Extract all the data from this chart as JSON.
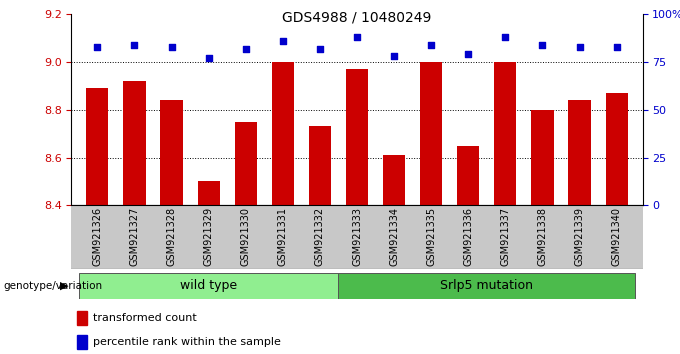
{
  "title": "GDS4988 / 10480249",
  "samples": [
    "GSM921326",
    "GSM921327",
    "GSM921328",
    "GSM921329",
    "GSM921330",
    "GSM921331",
    "GSM921332",
    "GSM921333",
    "GSM921334",
    "GSM921335",
    "GSM921336",
    "GSM921337",
    "GSM921338",
    "GSM921339",
    "GSM921340"
  ],
  "bar_values": [
    8.89,
    8.92,
    8.84,
    8.5,
    8.75,
    9.0,
    8.73,
    8.97,
    8.61,
    9.0,
    8.65,
    9.0,
    8.8,
    8.84,
    8.87
  ],
  "percentile_values": [
    83,
    84,
    83,
    77,
    82,
    86,
    82,
    88,
    78,
    84,
    79,
    88,
    84,
    83,
    83
  ],
  "bar_color": "#cc0000",
  "dot_color": "#0000cc",
  "ylim_left": [
    8.4,
    9.2
  ],
  "ylim_right": [
    0,
    100
  ],
  "yticks_left": [
    8.4,
    8.6,
    8.8,
    9.0,
    9.2
  ],
  "yticks_right": [
    0,
    25,
    50,
    75,
    100
  ],
  "ytick_labels_right": [
    "0",
    "25",
    "50",
    "75",
    "100%"
  ],
  "grid_values": [
    9.0,
    8.8,
    8.6
  ],
  "group_labels": [
    "wild type",
    "Srlp5 mutation"
  ],
  "group_split": 7,
  "group_color1": "#90EE90",
  "group_color2": "#4CBB4C",
  "genotype_label": "genotype/variation",
  "legend_items": [
    "transformed count",
    "percentile rank within the sample"
  ],
  "legend_colors": [
    "#cc0000",
    "#0000cc"
  ],
  "bar_width": 0.6,
  "axes_bg": "#ffffff",
  "title_fontsize": 10,
  "tick_fontsize": 8,
  "xtick_fontsize": 7,
  "label_fontsize": 8
}
